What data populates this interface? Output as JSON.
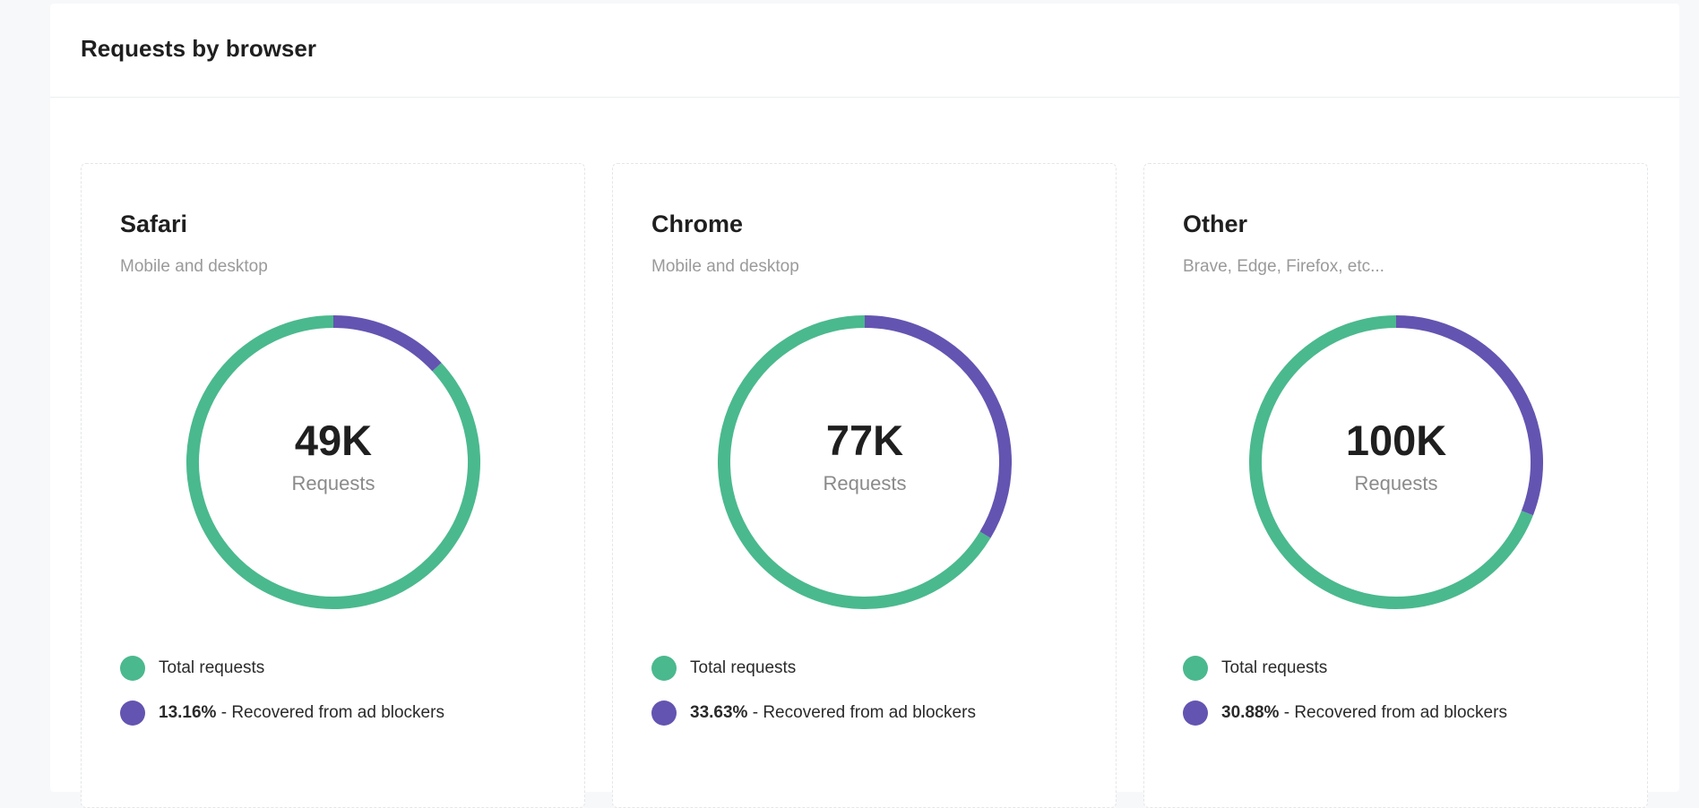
{
  "panel": {
    "title": "Requests by browser"
  },
  "colors": {
    "total": "#4ab98e",
    "recovered": "#6354b1"
  },
  "cards": [
    {
      "title": "Safari",
      "subtitle": "Mobile and desktop",
      "center_value": "49K",
      "center_unit": "Requests",
      "legend_total": "Total requests",
      "legend_pct": "13.16%",
      "legend_recovered": " - Recovered from ad blockers"
    },
    {
      "title": "Chrome",
      "subtitle": "Mobile and desktop",
      "center_value": "77K",
      "center_unit": "Requests",
      "legend_total": "Total requests",
      "legend_pct": "33.63%",
      "legend_recovered": " - Recovered from ad blockers"
    },
    {
      "title": "Other",
      "subtitle": "Brave, Edge, Firefox, etc...",
      "center_value": "100K",
      "center_unit": "Requests",
      "legend_total": "Total requests",
      "legend_pct": "30.88%",
      "legend_recovered": " - Recovered from ad blockers"
    }
  ],
  "chart_data": [
    {
      "type": "pie",
      "title": "Safari",
      "subtitle": "Mobile and desktop",
      "center_label": "49K Requests",
      "total_requests": 49000,
      "series": [
        {
          "name": "Recovered from ad blockers",
          "value": 13.16
        },
        {
          "name": "Total requests",
          "value": 86.84
        }
      ]
    },
    {
      "type": "pie",
      "title": "Chrome",
      "subtitle": "Mobile and desktop",
      "center_label": "77K Requests",
      "total_requests": 77000,
      "series": [
        {
          "name": "Recovered from ad blockers",
          "value": 33.63
        },
        {
          "name": "Total requests",
          "value": 66.37
        }
      ]
    },
    {
      "type": "pie",
      "title": "Other",
      "subtitle": "Brave, Edge, Firefox, etc...",
      "center_label": "100K Requests",
      "total_requests": 100000,
      "series": [
        {
          "name": "Recovered from ad blockers",
          "value": 30.88
        },
        {
          "name": "Total requests",
          "value": 69.12
        }
      ]
    }
  ]
}
